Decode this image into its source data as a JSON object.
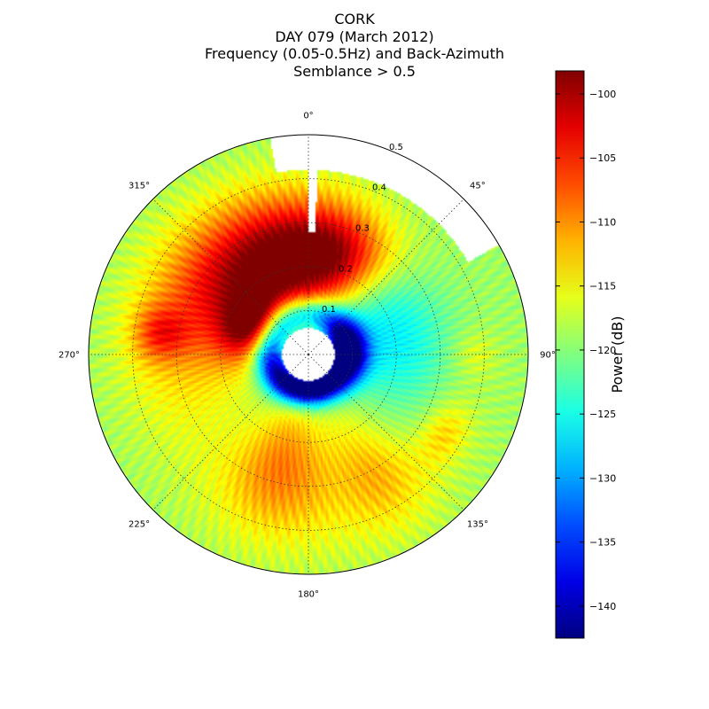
{
  "chart_data": {
    "type": "heatmap",
    "subtype": "polar",
    "title_lines": [
      "CORK",
      "DAY 079 (March 2012)",
      "Frequency (0.05-0.5Hz) and Back-Azimuth",
      "Semblance > 0.5"
    ],
    "angle_axis": {
      "zero_direction": "north",
      "direction": "clockwise",
      "tick_labels": [
        "0°",
        "45°",
        "90°",
        "135°",
        "180°",
        "225°",
        "270°",
        "315°"
      ],
      "tick_values_deg": [
        0,
        45,
        90,
        135,
        180,
        225,
        270,
        315
      ]
    },
    "radial_axis": {
      "quantity": "frequency",
      "range": [
        0,
        0.5
      ],
      "tick_values": [
        0.1,
        0.2,
        0.3,
        0.4,
        0.5
      ],
      "tick_labels": [
        "0.1",
        "0.2",
        "0.3",
        "0.4",
        "0.5"
      ],
      "tick_label_angle_deg": 22.5
    },
    "grid": true,
    "colorbar": {
      "label": "Power (dB)",
      "range": [
        -142.5,
        -98.2
      ],
      "ticks": [
        -100,
        -105,
        -110,
        -115,
        -120,
        -125,
        -130,
        -135,
        -140
      ],
      "tick_labels": [
        "−100",
        "−105",
        "−110",
        "−115",
        "−120",
        "−125",
        "−130",
        "−135",
        "−140"
      ],
      "colormap": "jet",
      "placement": "right"
    },
    "background_power_db": -119,
    "masked_regions": [
      {
        "az_range": [
          -10,
          60
        ],
        "freq_range": [
          0.42,
          0.5
        ],
        "note": "no data"
      },
      {
        "az_range": [
          0,
          3
        ],
        "freq_range": [
          0.28,
          0.5
        ],
        "note": "no data"
      },
      {
        "az_range": [
          0,
          360
        ],
        "freq_range": [
          0,
          0.06
        ],
        "note": "no data"
      }
    ],
    "features": [
      {
        "az_center": 318,
        "az_width": 56,
        "freq_center": 0.215,
        "freq_width": 0.12,
        "power_db": -105
      },
      {
        "az_center": 297,
        "az_width": 30,
        "freq_center": 0.15,
        "freq_width": 0.06,
        "power_db": -104
      },
      {
        "az_center": 355,
        "az_width": 36,
        "freq_center": 0.21,
        "freq_width": 0.13,
        "power_db": -107
      },
      {
        "az_center": 20,
        "az_width": 25,
        "freq_center": 0.24,
        "freq_width": 0.1,
        "power_db": -110
      },
      {
        "az_center": 305,
        "az_width": 60,
        "freq_center": 0.33,
        "freq_width": 0.12,
        "power_db": -113
      },
      {
        "az_center": 278,
        "az_width": 10,
        "freq_center": 0.34,
        "freq_width": 0.06,
        "power_db": -111
      },
      {
        "az_center": 170,
        "az_width": 50,
        "freq_center": 0.27,
        "freq_width": 0.18,
        "power_db": -114
      },
      {
        "az_center": 195,
        "az_width": 20,
        "freq_center": 0.27,
        "freq_width": 0.15,
        "power_db": -113
      },
      {
        "az_center": 150,
        "az_width": 15,
        "freq_center": 0.33,
        "freq_width": 0.12,
        "power_db": -115
      },
      {
        "az_center": 120,
        "az_width": 12,
        "freq_center": 0.36,
        "freq_width": 0.05,
        "power_db": -114
      },
      {
        "az_center": 90,
        "az_width": 8,
        "freq_center": 0.38,
        "freq_width": 0.05,
        "power_db": -116
      },
      {
        "az_center": 60,
        "az_width": 35,
        "freq_center": 0.2,
        "freq_width": 0.12,
        "power_db": -124
      },
      {
        "az_center": 100,
        "az_width": 40,
        "freq_center": 0.2,
        "freq_width": 0.12,
        "power_db": -124
      },
      {
        "az_center": 0,
        "az_width": 360,
        "freq_center": 0.09,
        "freq_width": 0.04,
        "power_db": -134
      },
      {
        "az_center": 180,
        "az_width": 80,
        "freq_center": 0.075,
        "freq_width": 0.03,
        "power_db": -140
      },
      {
        "az_center": 85,
        "az_width": 40,
        "freq_center": 0.09,
        "freq_width": 0.05,
        "power_db": -133
      }
    ]
  }
}
